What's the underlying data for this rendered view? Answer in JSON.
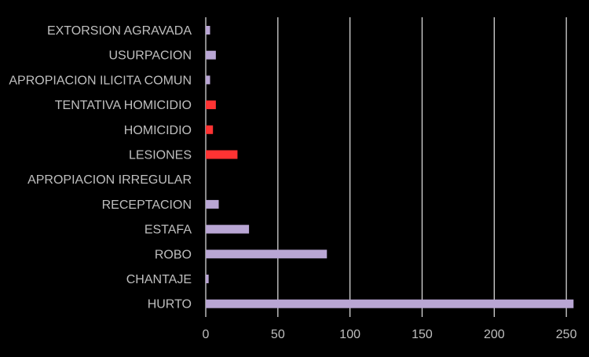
{
  "chart_data": {
    "type": "bar",
    "orientation": "horizontal",
    "title": "",
    "xlabel": "",
    "ylabel": "",
    "categories": [
      "EXTORSION AGRAVADA",
      "USURPACION",
      "APROPIACION ILICITA COMUN",
      "TENTATIVA HOMICIDIO",
      "HOMICIDIO",
      "LESIONES",
      "APROPIACION IRREGULAR",
      "RECEPTACION",
      "ESTAFA",
      "ROBO",
      "CHANTAJE",
      "HURTO"
    ],
    "values": [
      3,
      7,
      3,
      7,
      5,
      22,
      0,
      9,
      30,
      84,
      2,
      255
    ],
    "bar_colors": [
      "#b9a6d4",
      "#b9a6d4",
      "#b9a6d4",
      "#ff3333",
      "#ff3333",
      "#ff3333",
      "#b9a6d4",
      "#b9a6d4",
      "#b9a6d4",
      "#b9a6d4",
      "#b9a6d4",
      "#b9a6d4"
    ],
    "xlim": [
      0,
      260
    ],
    "xticks": [
      0,
      50,
      100,
      150,
      200,
      250
    ],
    "grid": "vertical",
    "legend": "none",
    "colors": {
      "background": "#000000",
      "text": "#bfbfbf",
      "grid": "#e6e6e6"
    }
  }
}
